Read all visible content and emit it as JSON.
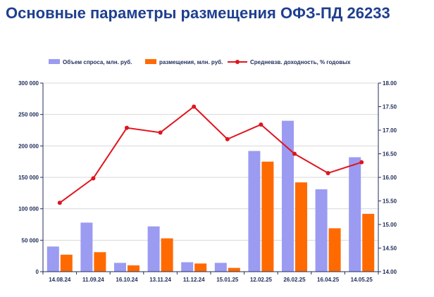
{
  "page": {
    "title": "Основные параметры размещения ОФЗ-ПД 26233"
  },
  "colors": {
    "demand": "#9b9bf2",
    "placement": "#ff6a00",
    "yield": "#e0141e",
    "axis": "#1f2d5a",
    "grid": "#d8d8d8",
    "title": "#1f3f8f"
  },
  "chart_data": {
    "type": "bar",
    "title": "",
    "categories": [
      "14.08.24",
      "11.09.24",
      "16.10.24",
      "13.11.24",
      "11.12.24",
      "15.01.25",
      "12.02.25",
      "26.02.25",
      "16.04.25",
      "14.05.25"
    ],
    "series": [
      {
        "name": "Объем спроса, млн. руб.",
        "type": "bar",
        "axis": "left",
        "values": [
          40000,
          78000,
          14000,
          72000,
          15000,
          14000,
          192000,
          240000,
          131000,
          182000
        ]
      },
      {
        "name": "размещения, млн. руб.",
        "type": "bar",
        "axis": "left",
        "values": [
          27000,
          31000,
          10000,
          53000,
          13000,
          6000,
          175000,
          142000,
          69000,
          92000
        ]
      },
      {
        "name": "Средневзв. доходность, % годовых",
        "type": "line",
        "axis": "right",
        "values": [
          15.46,
          15.98,
          17.05,
          16.95,
          17.5,
          16.81,
          17.12,
          16.5,
          16.09,
          16.32
        ]
      }
    ],
    "y_left": {
      "min": 0,
      "max": 300000,
      "step": 50000,
      "tick_labels": [
        "0",
        "50 000",
        "100 000",
        "150 000",
        "200 000",
        "250 000",
        "300 000"
      ]
    },
    "y_right": {
      "min": 14.0,
      "max": 18.0,
      "step": 0.5,
      "tick_labels": [
        "14.00",
        "14.50",
        "15.00",
        "15.50",
        "16.00",
        "16.50",
        "17.00",
        "17.50",
        "18.00"
      ]
    },
    "legend": "top"
  }
}
